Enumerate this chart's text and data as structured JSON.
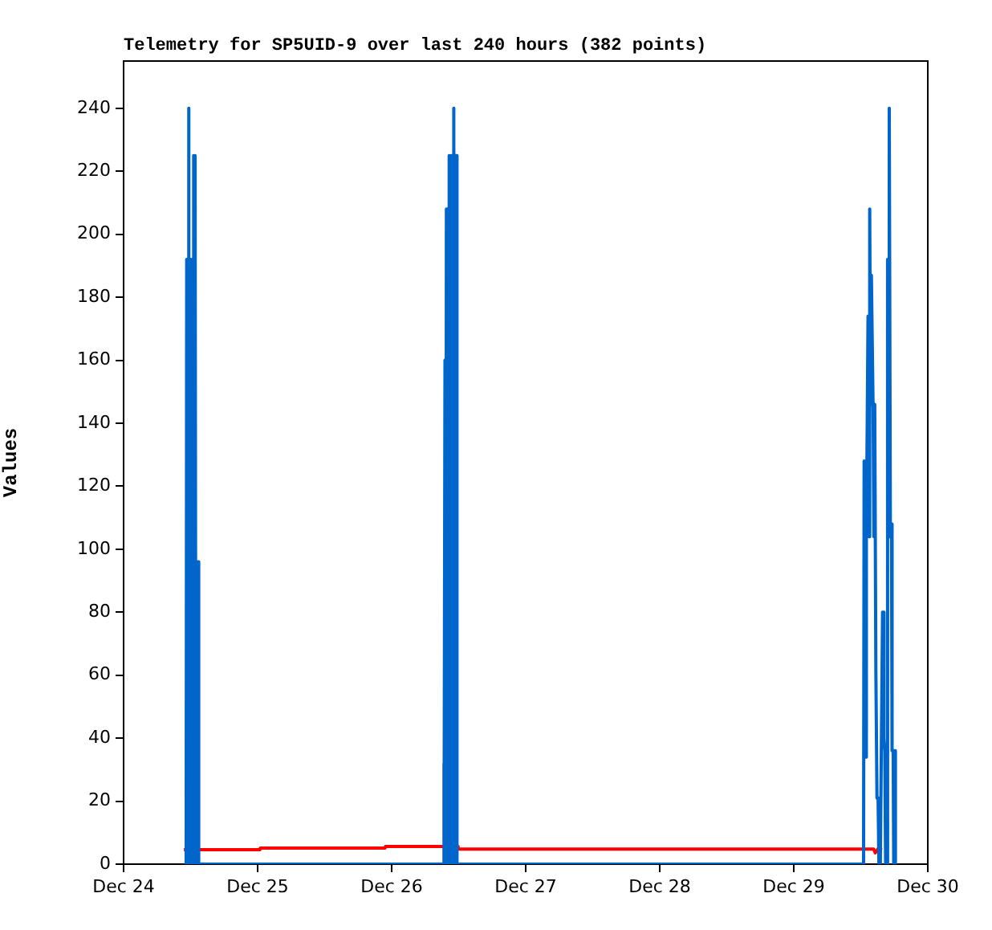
{
  "chart_data": {
    "type": "line",
    "title": "Telemetry for SP5UID-9 over last 240 hours (382 points)",
    "ylabel": "Values",
    "xlim": [
      "--12-24",
      "--12-30"
    ],
    "xticks": [
      {
        "value": "--12-24",
        "label": "Dec 24"
      },
      {
        "value": "--12-25",
        "label": "Dec 25"
      },
      {
        "value": "--12-26",
        "label": "Dec 26"
      },
      {
        "value": "--12-27",
        "label": "Dec 27"
      },
      {
        "value": "--12-28",
        "label": "Dec 28"
      },
      {
        "value": "--12-29",
        "label": "Dec 29"
      },
      {
        "value": "--12-30",
        "label": "Dec 30"
      }
    ],
    "ylim": [
      0,
      255
    ],
    "yticks": [
      0,
      20,
      40,
      60,
      80,
      100,
      120,
      140,
      160,
      180,
      200,
      220,
      240
    ],
    "marker": "none",
    "line_style": "solid",
    "series": [
      {
        "color": "#0066cc",
        "x": [
          "--12-24T11:12",
          "--12-24T11:18",
          "--12-24T11:24",
          "--12-24T11:30",
          "--12-24T11:36",
          "--12-24T11:45",
          "--12-24T11:54",
          "--12-24T12:00",
          "--12-24T12:09",
          "--12-24T12:18",
          "--12-24T12:27",
          "--12-24T12:33",
          "--12-24T12:42",
          "--12-24T12:48",
          "--12-24T12:57",
          "--12-24T13:03",
          "--12-24T13:12",
          "--12-24T13:18",
          "--12-24T13:27",
          "--12-26T09:12",
          "--12-26T09:18",
          "--12-26T09:27",
          "--12-26T09:33",
          "--12-26T09:42",
          "--12-26T09:48",
          "--12-26T09:57",
          "--12-26T10:03",
          "--12-26T10:12",
          "--12-26T10:18",
          "--12-26T10:27",
          "--12-26T10:33",
          "--12-26T10:42",
          "--12-26T10:48",
          "--12-26T10:57",
          "--12-26T11:03",
          "--12-26T11:12",
          "--12-26T11:18",
          "--12-26T11:27",
          "--12-26T11:33",
          "--12-26T11:42",
          "--12-29T12:30",
          "--12-29T12:36",
          "--12-29T12:48",
          "--12-29T13:00",
          "--12-29T13:18",
          "--12-29T13:27",
          "--12-29T13:36",
          "--12-29T13:45",
          "--12-29T13:54",
          "--12-29T14:12",
          "--12-29T14:21",
          "--12-29T14:30",
          "--12-29T14:42",
          "--12-29T14:54",
          "--12-29T15:06",
          "--12-29T15:12",
          "--12-29T15:18",
          "--12-29T15:30",
          "--12-29T15:54",
          "--12-29T16:00",
          "--12-29T16:06",
          "--12-29T16:12",
          "--12-29T16:18",
          "--12-29T16:24",
          "--12-29T16:30",
          "--12-29T16:36",
          "--12-29T16:48",
          "--12-29T16:54",
          "--12-29T17:06",
          "--12-29T17:18",
          "--12-29T17:30",
          "--12-29T17:36",
          "--12-29T17:48",
          "--12-29T17:54",
          "--12-29T18:06",
          "--12-29T18:12"
        ],
        "values": [
          0,
          192,
          0,
          192,
          240,
          192,
          0,
          192,
          0,
          192,
          0,
          225,
          0,
          225,
          0,
          96,
          0,
          96,
          0,
          0,
          32,
          0,
          160,
          0,
          208,
          0,
          208,
          0,
          225,
          0,
          225,
          0,
          225,
          0,
          240,
          0,
          225,
          0,
          225,
          0,
          0,
          128,
          34,
          104,
          174,
          104,
          208,
          146,
          187,
          146,
          104,
          146,
          62,
          21,
          21,
          0,
          21,
          0,
          80,
          40,
          80,
          40,
          36,
          0,
          36,
          0,
          192,
          104,
          240,
          104,
          108,
          36,
          36,
          0,
          36,
          0
        ]
      },
      {
        "color": "#ff0000",
        "x": [
          "--12-24T10:48",
          "--12-25T00:24",
          "--12-25T00:30",
          "--12-25T22:48",
          "--12-25T22:54",
          "--12-26T11:48",
          "--12-26T11:54",
          "--12-29T14:18",
          "--12-29T14:36",
          "--12-29T15:18",
          "--12-29T15:42"
        ],
        "values": [
          4.6,
          4.6,
          5.1,
          5.1,
          5.6,
          5.6,
          4.8,
          4.8,
          3.6,
          5.4,
          4.5
        ]
      }
    ]
  }
}
